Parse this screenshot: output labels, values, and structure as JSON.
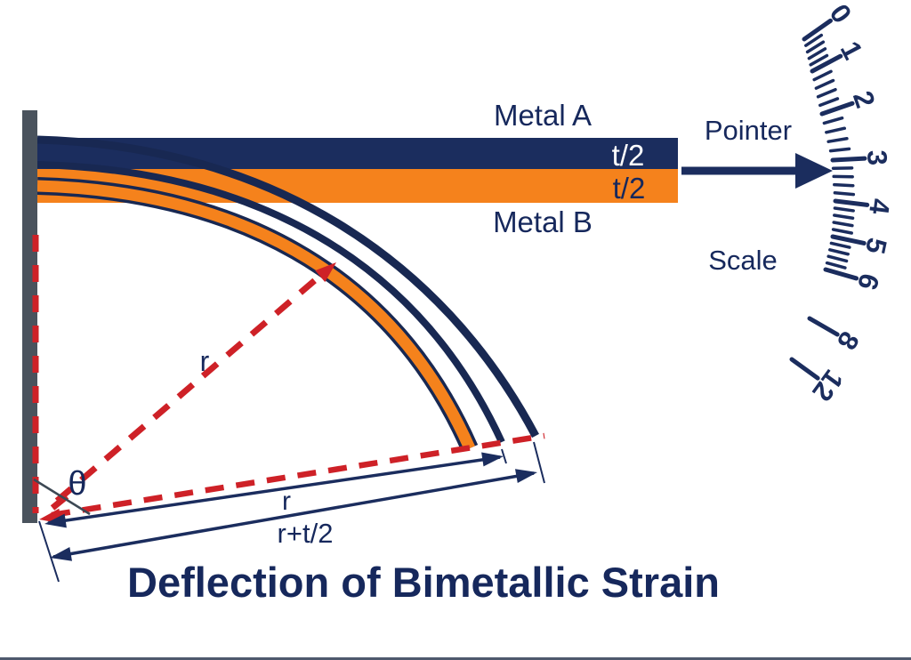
{
  "title": "Deflection of Bimetallic Strain",
  "colors": {
    "navy": "#1b2d5e",
    "navy_dark": "#182852",
    "text_navy": "#16285c",
    "orange": "#f5821c",
    "red": "#ce2127",
    "wall_gray": "#4a535d",
    "thin_line": "#3c4854",
    "white": "#ffffff",
    "bottom_edge": "#2f3c54"
  },
  "strip": {
    "metal_a_label": "Metal A",
    "metal_b_label": "Metal B",
    "half_thickness_top_label": "t/2",
    "half_thickness_bottom_label": "t/2"
  },
  "pointer": {
    "label": "Pointer"
  },
  "scale": {
    "label": "Scale",
    "numbers": [
      "0",
      "1",
      "2",
      "3",
      "4",
      "5",
      "6",
      "8",
      "12"
    ],
    "minors_between_numbers": 4
  },
  "dimensions": {
    "angle_label": "θ",
    "radius_ray_label": "r",
    "radius_dim_label": "r",
    "radius_plus_half_thickness_label": "r+t/2"
  }
}
